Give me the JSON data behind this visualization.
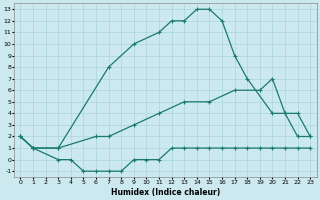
{
  "xlabel": "Humidex (Indice chaleur)",
  "background_color": "#cce9f0",
  "grid_color": "#b0d4dc",
  "line_color": "#1a7a6e",
  "xlim": [
    -0.5,
    23.5
  ],
  "ylim": [
    -1.5,
    13.5
  ],
  "xtick_labels": [
    "0",
    "1",
    "2",
    "3",
    "4",
    "5",
    "6",
    "7",
    "8",
    "9",
    "10",
    "11",
    "12",
    "13",
    "14",
    "15",
    "16",
    "17",
    "18",
    "19",
    "20",
    "21",
    "22",
    "23"
  ],
  "ytick_labels": [
    "-1",
    "0",
    "1",
    "2",
    "3",
    "4",
    "5",
    "6",
    "7",
    "8",
    "9",
    "10",
    "11",
    "12",
    "13"
  ],
  "ytick_vals": [
    -1,
    0,
    1,
    2,
    3,
    4,
    5,
    6,
    7,
    8,
    9,
    10,
    11,
    12,
    13
  ],
  "curve1_x": [
    0,
    1,
    3,
    7,
    9,
    11,
    12,
    13,
    14,
    15,
    16,
    17,
    18,
    20,
    21,
    22,
    23
  ],
  "curve1_y": [
    2,
    1,
    1,
    8,
    10,
    11,
    12,
    12,
    13,
    13,
    12,
    9,
    7,
    4,
    4,
    2,
    2
  ],
  "curve2_x": [
    0,
    1,
    3,
    6,
    7,
    9,
    11,
    13,
    15,
    17,
    19,
    20,
    21,
    22,
    23
  ],
  "curve2_y": [
    2,
    1,
    1,
    2,
    2,
    3,
    4,
    5,
    5,
    6,
    6,
    7,
    4,
    4,
    2
  ],
  "curve3_x": [
    0,
    1,
    3,
    4,
    5,
    6,
    7,
    8,
    9,
    10,
    11,
    12,
    13,
    14,
    15,
    16,
    17,
    18,
    19,
    20,
    21,
    22,
    23
  ],
  "curve3_y": [
    2,
    1,
    0,
    0,
    -1,
    -1,
    -1,
    -1,
    0,
    0,
    0,
    1,
    1,
    1,
    1,
    1,
    1,
    1,
    1,
    1,
    1,
    1,
    1
  ]
}
